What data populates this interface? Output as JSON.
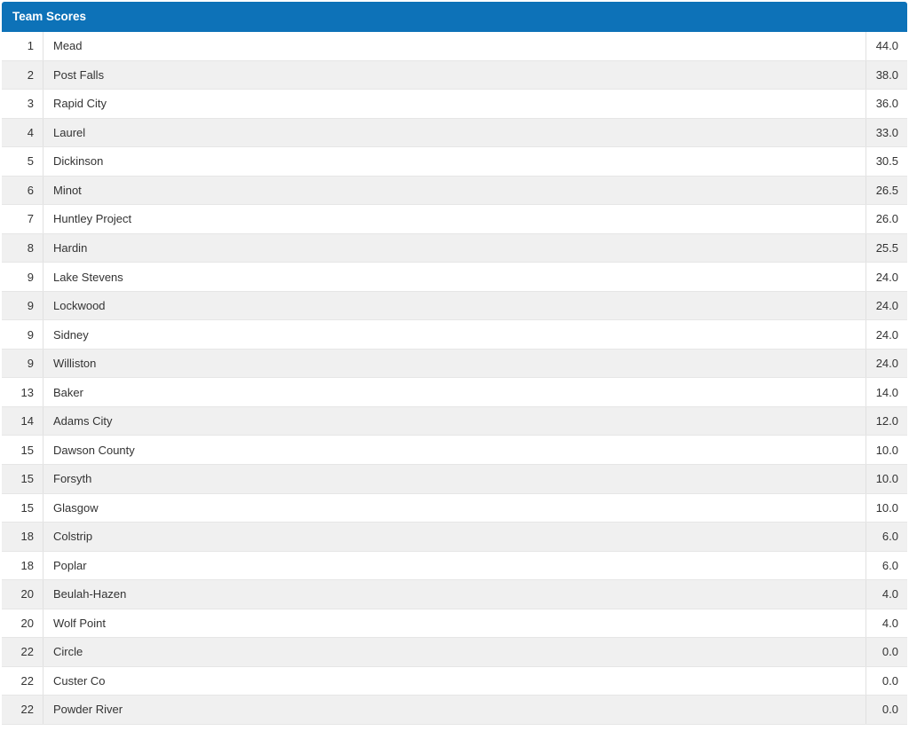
{
  "widget": {
    "title": "Team Scores"
  },
  "colors": {
    "header_bg": "#0d72b8",
    "header_text": "#ffffff",
    "row_bg": "#ffffff",
    "row_alt_bg": "#f0f0f0",
    "row_border": "#e6e6e6",
    "cell_border": "#e0e0e0",
    "text": "#333333"
  },
  "table": {
    "columns": [
      "rank",
      "team",
      "score"
    ],
    "rows": [
      {
        "rank": "1",
        "team": "Mead",
        "score": "44.0"
      },
      {
        "rank": "2",
        "team": "Post Falls",
        "score": "38.0"
      },
      {
        "rank": "3",
        "team": "Rapid City",
        "score": "36.0"
      },
      {
        "rank": "4",
        "team": "Laurel",
        "score": "33.0"
      },
      {
        "rank": "5",
        "team": "Dickinson",
        "score": "30.5"
      },
      {
        "rank": "6",
        "team": "Minot",
        "score": "26.5"
      },
      {
        "rank": "7",
        "team": "Huntley Project",
        "score": "26.0"
      },
      {
        "rank": "8",
        "team": "Hardin",
        "score": "25.5"
      },
      {
        "rank": "9",
        "team": "Lake Stevens",
        "score": "24.0"
      },
      {
        "rank": "9",
        "team": "Lockwood",
        "score": "24.0"
      },
      {
        "rank": "9",
        "team": "Sidney",
        "score": "24.0"
      },
      {
        "rank": "9",
        "team": "Williston",
        "score": "24.0"
      },
      {
        "rank": "13",
        "team": "Baker",
        "score": "14.0"
      },
      {
        "rank": "14",
        "team": "Adams City",
        "score": "12.0"
      },
      {
        "rank": "15",
        "team": "Dawson County",
        "score": "10.0"
      },
      {
        "rank": "15",
        "team": "Forsyth",
        "score": "10.0"
      },
      {
        "rank": "15",
        "team": "Glasgow",
        "score": "10.0"
      },
      {
        "rank": "18",
        "team": "Colstrip",
        "score": "6.0"
      },
      {
        "rank": "18",
        "team": "Poplar",
        "score": "6.0"
      },
      {
        "rank": "20",
        "team": "Beulah-Hazen",
        "score": "4.0"
      },
      {
        "rank": "20",
        "team": "Wolf Point",
        "score": "4.0"
      },
      {
        "rank": "22",
        "team": "Circle",
        "score": "0.0"
      },
      {
        "rank": "22",
        "team": "Custer Co",
        "score": "0.0"
      },
      {
        "rank": "22",
        "team": "Powder River",
        "score": "0.0"
      }
    ]
  }
}
